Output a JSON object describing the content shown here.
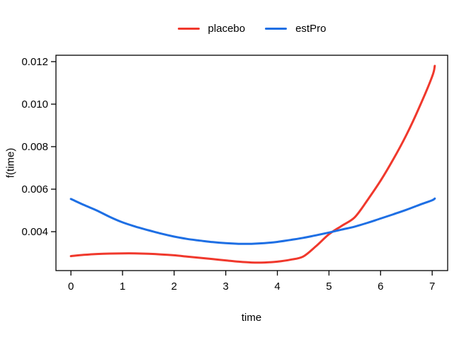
{
  "figure": {
    "background": "#FFFFFF",
    "axis_color": "#000000",
    "text_color": "#000000"
  },
  "legend": {
    "position": "top-center",
    "entries": [
      "placebo",
      "estPro"
    ]
  },
  "chart_data": {
    "type": "line",
    "title": "",
    "xlabel": "time",
    "ylabel": "f(time)",
    "grid": false,
    "xlim": [
      -0.29,
      7.3
    ],
    "ylim": [
      0.00217,
      0.0123
    ],
    "xticks": {
      "values": [
        0,
        1,
        2,
        3,
        4,
        5,
        6,
        7
      ],
      "labels": [
        "0",
        "1",
        "2",
        "3",
        "4",
        "5",
        "6",
        "7"
      ]
    },
    "yticks": {
      "values": [
        0.004,
        0.006,
        0.008,
        0.01,
        0.012
      ],
      "labels": [
        "0.004",
        "0.006",
        "0.008",
        "0.010",
        "0.012"
      ]
    },
    "x": [
      0,
      0.25,
      0.5,
      0.75,
      1,
      1.25,
      1.5,
      1.75,
      2,
      2.25,
      2.5,
      2.75,
      3,
      3.25,
      3.5,
      3.75,
      4,
      4.25,
      4.5,
      4.75,
      5,
      5.25,
      5.5,
      5.75,
      6,
      6.25,
      6.5,
      6.75,
      7,
      7.05
    ],
    "series": [
      {
        "name": "placebo",
        "color": "#F0382C",
        "values": [
          0.00285,
          0.00291,
          0.00295,
          0.00297,
          0.00298,
          0.00298,
          0.00296,
          0.00293,
          0.00289,
          0.00283,
          0.00277,
          0.00271,
          0.00265,
          0.00259,
          0.00255,
          0.00255,
          0.00259,
          0.00268,
          0.00283,
          0.00332,
          0.00388,
          0.00428,
          0.00468,
          0.0055,
          0.0064,
          0.00742,
          0.00855,
          0.00985,
          0.0113,
          0.0118
        ]
      },
      {
        "name": "estPro",
        "color": "#1E6FE4",
        "values": [
          0.00554,
          0.00526,
          0.005,
          0.0047,
          0.00444,
          0.00424,
          0.00407,
          0.00391,
          0.00377,
          0.00366,
          0.00358,
          0.00351,
          0.00346,
          0.00343,
          0.00343,
          0.00346,
          0.00352,
          0.00361,
          0.00371,
          0.00383,
          0.00396,
          0.0041,
          0.00424,
          0.00442,
          0.00462,
          0.00482,
          0.00503,
          0.00526,
          0.00548,
          0.00556
        ]
      }
    ],
    "legend_position": "top-center"
  }
}
